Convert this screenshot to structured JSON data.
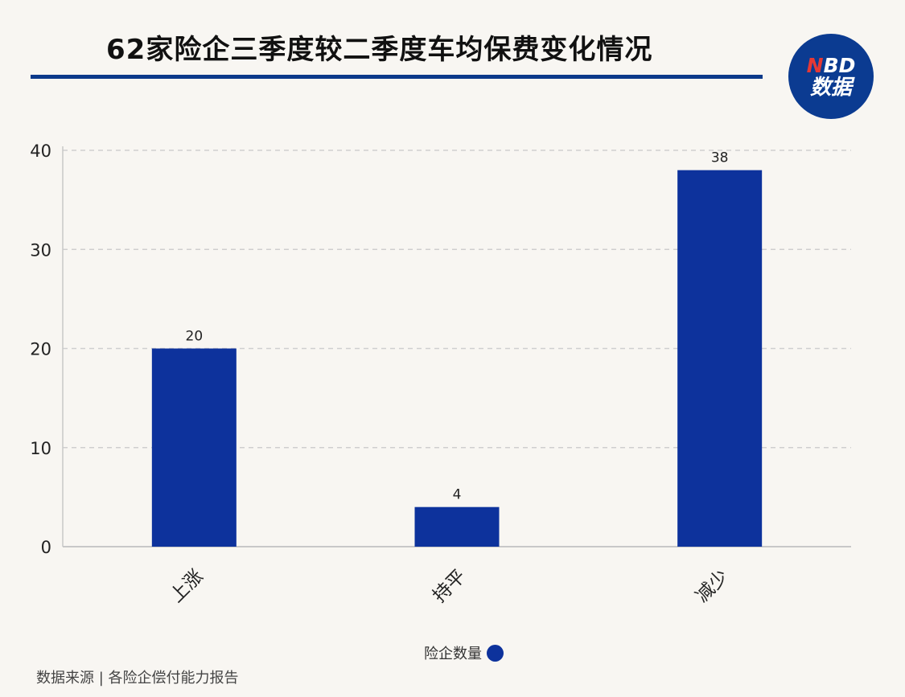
{
  "header": {
    "title": "62家险企三季度较二季度车均保费变化情况",
    "logo_top": "NBD",
    "logo_bottom": "数据"
  },
  "legend": {
    "label": "险企数量"
  },
  "footer": {
    "source": "数据来源 | 各险企偿付能力报告"
  },
  "colors": {
    "bar": "#0d329c",
    "rule": "#0c3a8a",
    "logo_bg": "#0b3b91"
  },
  "chart_data": {
    "type": "bar",
    "title": "62家险企三季度较二季度车均保费变化情况",
    "categories": [
      "上涨",
      "持平",
      "减少"
    ],
    "series": [
      {
        "name": "险企数量",
        "values": [
          20,
          4,
          38
        ]
      }
    ],
    "ylim": [
      0,
      40
    ],
    "yticks": [
      0,
      10,
      20,
      30,
      40
    ],
    "grid": true,
    "legend_position": "bottom"
  }
}
